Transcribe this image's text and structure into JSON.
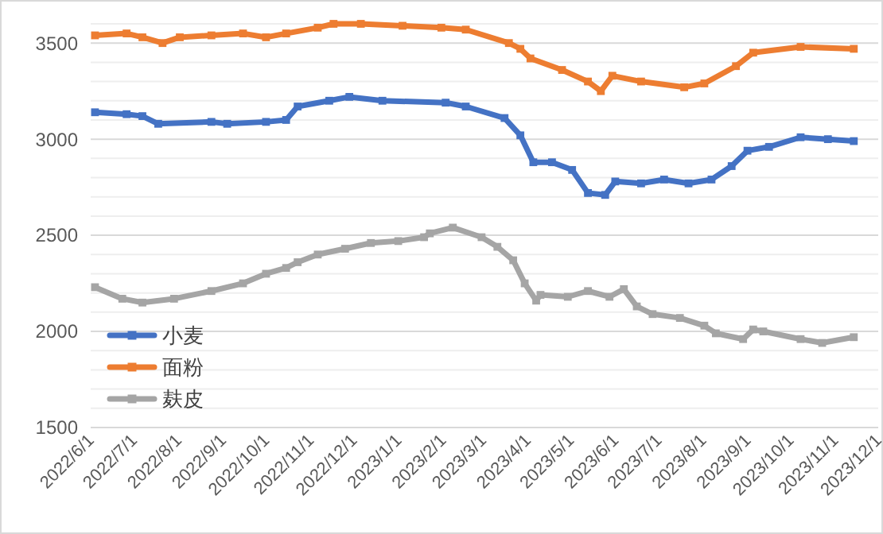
{
  "chart_data": {
    "type": "line",
    "marker": "square",
    "grid": "y",
    "legend": "bottom left",
    "xlim": [
      "2022-06-01",
      "2023-12-01"
    ],
    "xticks": [
      {
        "value": "2022-06-01",
        "label": "2022/6/1"
      },
      {
        "value": "2022-07-01",
        "label": "2022/7/1"
      },
      {
        "value": "2022-08-01",
        "label": "2022/8/1"
      },
      {
        "value": "2022-09-01",
        "label": "2022/9/1"
      },
      {
        "value": "2022-10-01",
        "label": "2022/10/1"
      },
      {
        "value": "2022-11-01",
        "label": "2022/11/1"
      },
      {
        "value": "2022-12-01",
        "label": "2022/12/1"
      },
      {
        "value": "2023-01-01",
        "label": "2023/1/1"
      },
      {
        "value": "2023-02-01",
        "label": "2023/2/1"
      },
      {
        "value": "2023-03-01",
        "label": "2023/3/1"
      },
      {
        "value": "2023-04-01",
        "label": "2023/4/1"
      },
      {
        "value": "2023-05-01",
        "label": "2023/5/1"
      },
      {
        "value": "2023-06-01",
        "label": "2023/6/1"
      },
      {
        "value": "2023-07-01",
        "label": "2023/7/1"
      },
      {
        "value": "2023-08-01",
        "label": "2023/8/1"
      },
      {
        "value": "2023-09-01",
        "label": "2023/9/1"
      },
      {
        "value": "2023-10-01",
        "label": "2023/10/1"
      },
      {
        "value": "2023-11-01",
        "label": "2023/11/1"
      },
      {
        "value": "2023-12-01",
        "label": "2023/12/1"
      }
    ],
    "ylim": [
      1500,
      3600
    ],
    "yticks": [
      1500,
      {
        "value": 1600,
        "label": null
      },
      {
        "value": 1700,
        "label": null
      },
      {
        "value": 1800,
        "label": null
      },
      {
        "value": 1900,
        "label": null
      },
      2000,
      {
        "value": 2100,
        "label": null
      },
      {
        "value": 2200,
        "label": null
      },
      {
        "value": 2300,
        "label": null
      },
      {
        "value": 2400,
        "label": null
      },
      2500,
      {
        "value": 2600,
        "label": null
      },
      {
        "value": 2700,
        "label": null
      },
      {
        "value": 2800,
        "label": null
      },
      {
        "value": 2900,
        "label": null
      },
      3000,
      {
        "value": 3100,
        "label": null
      },
      {
        "value": 3200,
        "label": null
      },
      {
        "value": 3300,
        "label": null
      },
      {
        "value": 3400,
        "label": null
      },
      3500,
      {
        "value": 3600,
        "label": null
      }
    ],
    "series": [
      {
        "name": "小麦",
        "color": "#4472c4",
        "x": [
          "2022-06-04",
          "2022-06-26",
          "2022-07-07",
          "2022-07-18",
          "2022-08-24",
          "2022-09-04",
          "2022-10-01",
          "2022-10-15",
          "2022-10-23",
          "2022-11-14",
          "2022-11-28",
          "2022-12-21",
          "2023-02-03",
          "2023-02-17",
          "2023-03-16",
          "2023-03-27",
          "2023-04-05",
          "2023-04-18",
          "2023-05-02",
          "2023-05-13",
          "2023-05-25",
          "2023-06-01",
          "2023-06-19",
          "2023-07-05",
          "2023-07-22",
          "2023-08-07",
          "2023-08-21",
          "2023-09-01",
          "2023-09-16",
          "2023-10-08",
          "2023-10-27",
          "2023-11-14"
        ],
        "values": [
          3140,
          3130,
          3120,
          3080,
          3090,
          3080,
          3090,
          3100,
          3170,
          3200,
          3220,
          3200,
          3190,
          3170,
          3110,
          3020,
          2880,
          2880,
          2840,
          2720,
          2710,
          2780,
          2770,
          2790,
          2770,
          2790,
          2860,
          2940,
          2960,
          3010,
          3000,
          2990
        ]
      },
      {
        "name": "面粉",
        "color": "#ed7d31",
        "x": [
          "2022-06-04",
          "2022-06-26",
          "2022-07-07",
          "2022-07-21",
          "2022-08-02",
          "2022-08-24",
          "2022-09-15",
          "2022-10-01",
          "2022-10-15",
          "2022-11-06",
          "2022-11-17",
          "2022-12-06",
          "2023-01-04",
          "2023-01-31",
          "2023-02-17",
          "2023-03-19",
          "2023-03-27",
          "2023-04-03",
          "2023-04-25",
          "2023-05-13",
          "2023-05-22",
          "2023-05-30",
          "2023-06-19",
          "2023-07-19",
          "2023-08-02",
          "2023-08-24",
          "2023-09-05",
          "2023-10-08",
          "2023-11-14"
        ],
        "values": [
          3540,
          3550,
          3530,
          3500,
          3530,
          3540,
          3550,
          3530,
          3550,
          3580,
          3600,
          3600,
          3590,
          3580,
          3570,
          3500,
          3470,
          3420,
          3360,
          3300,
          3250,
          3330,
          3300,
          3270,
          3290,
          3380,
          3450,
          3480,
          3470
        ]
      },
      {
        "name": "麸皮",
        "color": "#a5a5a5",
        "x": [
          "2022-06-04",
          "2022-06-23",
          "2022-07-07",
          "2022-07-29",
          "2022-08-24",
          "2022-09-15",
          "2022-10-01",
          "2022-10-15",
          "2022-10-23",
          "2022-11-06",
          "2022-11-25",
          "2022-12-13",
          "2023-01-01",
          "2023-01-19",
          "2023-01-23",
          "2023-02-08",
          "2023-02-28",
          "2023-03-11",
          "2023-03-22",
          "2023-03-30",
          "2023-04-07",
          "2023-04-10",
          "2023-04-29",
          "2023-05-13",
          "2023-05-28",
          "2023-06-07",
          "2023-06-16",
          "2023-06-27",
          "2023-07-16",
          "2023-08-02",
          "2023-08-10",
          "2023-08-29",
          "2023-09-05",
          "2023-09-12",
          "2023-10-08",
          "2023-10-23",
          "2023-11-14"
        ],
        "values": [
          2230,
          2170,
          2150,
          2170,
          2210,
          2250,
          2300,
          2330,
          2360,
          2400,
          2430,
          2460,
          2470,
          2490,
          2510,
          2540,
          2490,
          2440,
          2370,
          2250,
          2160,
          2190,
          2180,
          2210,
          2180,
          2220,
          2130,
          2090,
          2070,
          2030,
          1990,
          1960,
          2010,
          2000,
          1960,
          1940,
          1970
        ]
      }
    ]
  }
}
